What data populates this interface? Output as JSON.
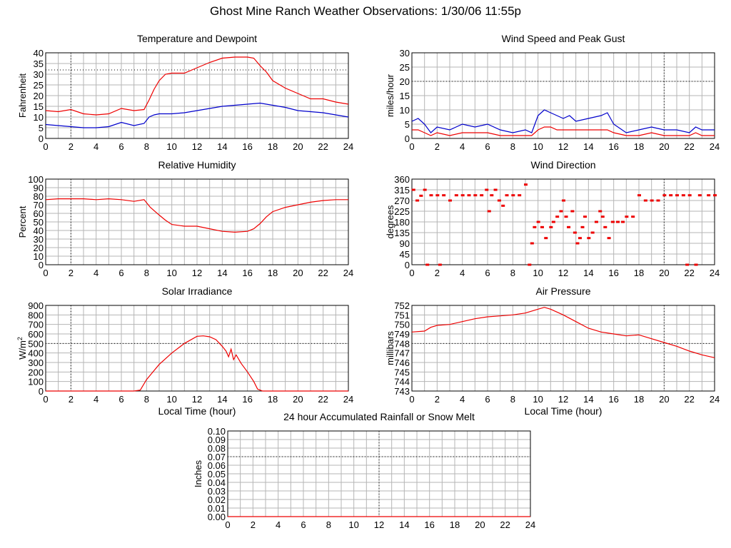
{
  "page": {
    "title": "Ghost Mine Ranch Weather Observations: 1/30/06 11:55p"
  },
  "colors": {
    "red": "#ee0000",
    "blue": "#0000cc",
    "grid": "#b5b5b5"
  },
  "chart_data": [
    {
      "id": "temp",
      "type": "line",
      "title": "Temperature and Dewpoint",
      "ylabel": "Fahrenheit",
      "xlabel": "",
      "xlim": [
        0,
        24
      ],
      "ylim": [
        0,
        40
      ],
      "yticks": [
        0,
        5,
        10,
        15,
        20,
        25,
        30,
        35,
        40
      ],
      "xticks": [
        0,
        2,
        4,
        6,
        8,
        10,
        12,
        14,
        16,
        18,
        20,
        22,
        24
      ],
      "grid": true,
      "series": [
        {
          "color": "#ee0000",
          "x": [
            0,
            1,
            2,
            3,
            4,
            5,
            6,
            7,
            7.8,
            8.2,
            8.6,
            9,
            9.5,
            10,
            11,
            12,
            13,
            14,
            15,
            16,
            16.5,
            17,
            17.5,
            18,
            19,
            20,
            21,
            22,
            23,
            24
          ],
          "y": [
            13,
            12.5,
            13.5,
            11.5,
            11,
            11.5,
            14,
            13,
            13.5,
            18,
            23,
            27,
            30,
            30.5,
            30.5,
            33,
            35.5,
            37.5,
            38,
            38,
            37.5,
            34,
            31,
            27,
            23.5,
            21,
            18.5,
            18.5,
            17,
            16
          ]
        },
        {
          "color": "#0000cc",
          "x": [
            0,
            1,
            2,
            3,
            4,
            5,
            6,
            7,
            7.8,
            8.2,
            8.6,
            9,
            10,
            11,
            12,
            13,
            14,
            15,
            16,
            17,
            18,
            19,
            20,
            21,
            22,
            23,
            24
          ],
          "y": [
            6.5,
            6,
            5.5,
            5,
            5,
            5.5,
            7.5,
            6,
            7,
            10,
            11,
            11.5,
            11.5,
            12,
            13,
            14,
            15,
            15.5,
            16,
            16.5,
            15.5,
            14.5,
            13,
            12.5,
            12,
            11,
            10
          ]
        }
      ]
    },
    {
      "id": "wind",
      "type": "line",
      "title": "Wind Speed and Peak Gust",
      "ylabel": "miles/hour",
      "xlabel": "",
      "xlim": [
        0,
        24
      ],
      "ylim": [
        0,
        30
      ],
      "yticks": [
        0,
        5,
        10,
        15,
        20,
        25,
        30
      ],
      "xticks": [
        0,
        2,
        4,
        6,
        8,
        10,
        12,
        14,
        16,
        18,
        20,
        22,
        24
      ],
      "grid": true,
      "series": [
        {
          "color": "#0000cc",
          "x": [
            0,
            0.5,
            1,
            1.5,
            2,
            3,
            4,
            5,
            6,
            7,
            8,
            9,
            9.5,
            10,
            10.5,
            11,
            11.5,
            12,
            12.5,
            13,
            14,
            15,
            15.5,
            16,
            17,
            18,
            19,
            20,
            21,
            22,
            22.5,
            23,
            24
          ],
          "y": [
            6,
            7,
            5,
            2,
            4,
            3,
            5,
            4,
            5,
            3,
            2,
            3,
            2,
            8,
            10,
            9,
            8,
            7,
            8,
            6,
            7,
            8,
            9,
            5,
            2,
            3,
            4,
            3,
            3,
            2,
            4,
            3,
            3
          ]
        },
        {
          "color": "#ee0000",
          "x": [
            0,
            0.5,
            1,
            1.5,
            2,
            3,
            4,
            5,
            6,
            7,
            8,
            9,
            9.5,
            10,
            10.5,
            11,
            11.5,
            12,
            12.5,
            13,
            14,
            15,
            15.5,
            16,
            17,
            18,
            19,
            20,
            21,
            22,
            22.5,
            23,
            24
          ],
          "y": [
            3,
            3,
            2,
            1,
            2,
            1,
            2,
            2,
            2,
            1,
            1,
            1,
            1,
            3,
            4,
            4,
            3,
            3,
            3,
            3,
            3,
            3,
            3,
            2,
            1,
            1,
            2,
            1,
            1,
            1,
            2,
            1,
            1
          ]
        }
      ]
    },
    {
      "id": "humidity",
      "type": "line",
      "title": "Relative Humidity",
      "ylabel": "Percent",
      "xlabel": "",
      "xlim": [
        0,
        24
      ],
      "ylim": [
        0,
        100
      ],
      "yticks": [
        0,
        10,
        20,
        30,
        40,
        50,
        60,
        70,
        80,
        90,
        100
      ],
      "xticks": [
        0,
        2,
        4,
        6,
        8,
        10,
        12,
        14,
        16,
        18,
        20,
        22,
        24
      ],
      "grid": true,
      "series": [
        {
          "color": "#ee0000",
          "x": [
            0,
            1,
            2,
            3,
            4,
            5,
            6,
            7,
            7.8,
            8.3,
            9,
            9.5,
            10,
            11,
            12,
            13,
            14,
            15,
            16,
            16.5,
            17,
            17.5,
            18,
            19,
            20,
            21,
            22,
            23,
            24
          ],
          "y": [
            76,
            77,
            77,
            77,
            76,
            77,
            76,
            74,
            76,
            67,
            58,
            52,
            47,
            45,
            45,
            42,
            39,
            38,
            39,
            42,
            48,
            56,
            62,
            67,
            70,
            73,
            75,
            76,
            76
          ]
        }
      ]
    },
    {
      "id": "winddir",
      "type": "scatter",
      "title": "Wind Direction",
      "ylabel": "degrees",
      "xlabel": "",
      "xlim": [
        0,
        24
      ],
      "ylim": [
        0,
        360
      ],
      "yticks": [
        0,
        45,
        90,
        135,
        180,
        225,
        270,
        315,
        360
      ],
      "xticks": [
        0,
        2,
        4,
        6,
        8,
        10,
        12,
        14,
        16,
        18,
        20,
        22,
        24
      ],
      "grid": true,
      "series": [
        {
          "color": "#ee0000",
          "points": [
            [
              0.1,
              315
            ],
            [
              0.4,
              270
            ],
            [
              0.7,
              290
            ],
            [
              1.0,
              315
            ],
            [
              1.2,
              0
            ],
            [
              1.5,
              292
            ],
            [
              2.0,
              292
            ],
            [
              2.2,
              0
            ],
            [
              2.5,
              292
            ],
            [
              3.0,
              270
            ],
            [
              3.5,
              292
            ],
            [
              4.0,
              292
            ],
            [
              4.5,
              292
            ],
            [
              5.0,
              292
            ],
            [
              5.5,
              292
            ],
            [
              5.9,
              315
            ],
            [
              6.1,
              225
            ],
            [
              6.3,
              292
            ],
            [
              6.6,
              315
            ],
            [
              6.9,
              270
            ],
            [
              7.2,
              248
            ],
            [
              7.5,
              292
            ],
            [
              8.0,
              292
            ],
            [
              8.5,
              292
            ],
            [
              9.0,
              337
            ],
            [
              9.3,
              0
            ],
            [
              9.5,
              90
            ],
            [
              9.7,
              158
            ],
            [
              10.0,
              180
            ],
            [
              10.3,
              158
            ],
            [
              10.6,
              112
            ],
            [
              11.0,
              158
            ],
            [
              11.2,
              180
            ],
            [
              11.5,
              202
            ],
            [
              11.8,
              225
            ],
            [
              12.0,
              270
            ],
            [
              12.2,
              202
            ],
            [
              12.4,
              158
            ],
            [
              12.7,
              225
            ],
            [
              12.9,
              135
            ],
            [
              13.1,
              90
            ],
            [
              13.3,
              112
            ],
            [
              13.5,
              158
            ],
            [
              13.7,
              202
            ],
            [
              14.0,
              112
            ],
            [
              14.3,
              135
            ],
            [
              14.6,
              180
            ],
            [
              14.9,
              225
            ],
            [
              15.1,
              202
            ],
            [
              15.3,
              158
            ],
            [
              15.6,
              112
            ],
            [
              15.9,
              180
            ],
            [
              16.3,
              180
            ],
            [
              16.7,
              180
            ],
            [
              17.0,
              202
            ],
            [
              17.5,
              202
            ],
            [
              18.0,
              292
            ],
            [
              18.5,
              270
            ],
            [
              19.0,
              270
            ],
            [
              19.5,
              270
            ],
            [
              20.0,
              292
            ],
            [
              20.5,
              292
            ],
            [
              21.0,
              292
            ],
            [
              21.5,
              292
            ],
            [
              21.8,
              0
            ],
            [
              22.0,
              292
            ],
            [
              22.5,
              0
            ],
            [
              22.8,
              292
            ],
            [
              23.5,
              292
            ],
            [
              24.0,
              292
            ]
          ]
        }
      ]
    },
    {
      "id": "solar",
      "type": "line",
      "title": "Solar Irradiance",
      "ylabel": "W/m",
      "ylabel_sup": "2",
      "xlabel": "Local Time (hour)",
      "xlim": [
        0,
        24
      ],
      "ylim": [
        0,
        900
      ],
      "yticks": [
        0,
        100,
        200,
        300,
        400,
        500,
        600,
        700,
        800,
        900
      ],
      "xticks": [
        0,
        2,
        4,
        6,
        8,
        10,
        12,
        14,
        16,
        18,
        20,
        22,
        24
      ],
      "grid": true,
      "series": [
        {
          "color": "#ee0000",
          "x": [
            0,
            7,
            7.5,
            8,
            8.5,
            9,
            10,
            11,
            12,
            12.5,
            13,
            13.5,
            14,
            14.3,
            14.5,
            14.7,
            14.9,
            15.1,
            15.5,
            16,
            16.5,
            16.8,
            17.2,
            18,
            24
          ],
          "y": [
            0,
            0,
            10,
            120,
            200,
            280,
            400,
            500,
            575,
            580,
            570,
            540,
            470,
            420,
            360,
            440,
            330,
            380,
            290,
            200,
            100,
            20,
            0,
            0,
            0
          ]
        }
      ]
    },
    {
      "id": "pressure",
      "type": "line",
      "title": "Air Pressure",
      "ylabel": "millibars",
      "xlabel": "Local Time (hour)",
      "xlim": [
        0,
        24
      ],
      "ylim": [
        743,
        752
      ],
      "yticks": [
        743,
        744,
        745,
        746,
        747,
        748,
        749,
        750,
        751,
        752
      ],
      "xticks": [
        0,
        2,
        4,
        6,
        8,
        10,
        12,
        14,
        16,
        18,
        20,
        22,
        24
      ],
      "grid": true,
      "series": [
        {
          "color": "#ee0000",
          "x": [
            0,
            1,
            1.5,
            2,
            3,
            4,
            5,
            6,
            7,
            8,
            9,
            10,
            10.5,
            11,
            12,
            13,
            14,
            15,
            16,
            17,
            18,
            19,
            20,
            21,
            22,
            23,
            24
          ],
          "y": [
            749.2,
            749.3,
            749.7,
            749.9,
            750.0,
            750.3,
            750.6,
            750.8,
            750.9,
            751.0,
            751.2,
            751.6,
            751.8,
            751.6,
            751.0,
            750.3,
            749.6,
            749.2,
            749.0,
            748.8,
            748.9,
            748.5,
            748.1,
            747.7,
            747.2,
            746.8,
            746.5
          ]
        }
      ]
    },
    {
      "id": "rain",
      "type": "line",
      "title": "24 hour Accumulated Rainfall or Snow Melt",
      "ylabel": "Inches",
      "xlabel": "",
      "xlim": [
        0,
        24
      ],
      "ylim": [
        0,
        0.1
      ],
      "yticks": [
        "0.00",
        "0.01",
        "0.02",
        "0.03",
        "0.04",
        "0.05",
        "0.06",
        "0.07",
        "0.08",
        "0.09",
        "0.10"
      ],
      "xticks": [
        0,
        2,
        4,
        6,
        8,
        10,
        12,
        14,
        16,
        18,
        20,
        22,
        24
      ],
      "grid": true,
      "series": [
        {
          "color": "#ee0000",
          "x": [
            0,
            24
          ],
          "y": [
            0,
            0
          ]
        }
      ]
    }
  ]
}
